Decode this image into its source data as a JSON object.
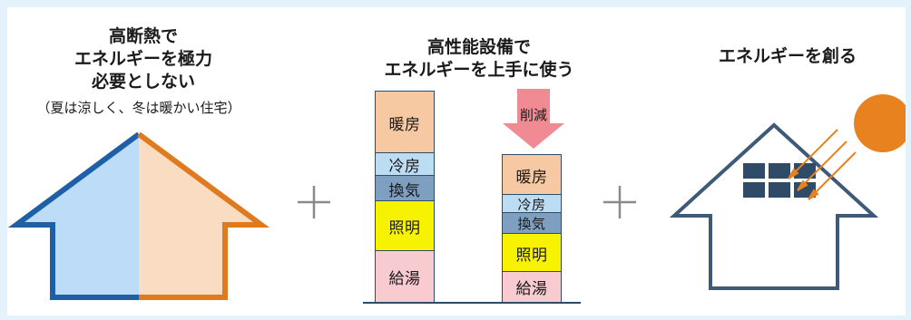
{
  "left_panel": {
    "title_line1": "高断熱で",
    "title_line2": "エネルギーを極力",
    "title_line3": "必要としない",
    "subtitle": "（夏は涼しく、冬は暖かい住宅）"
  },
  "middle_panel": {
    "title_line1": "高性能設備で",
    "title_line2": "エネルギーを上手に使う",
    "reduce_label": "削減",
    "before_stack": [
      {
        "label": "暖房",
        "color": "#f6c9a2"
      },
      {
        "label": "冷房",
        "color": "#bcdcf4"
      },
      {
        "label": "換気",
        "color": "#7f9fc0"
      },
      {
        "label": "照明",
        "color": "#f7f300"
      },
      {
        "label": "給湯",
        "color": "#f7cbcf"
      }
    ],
    "after_stack": [
      {
        "label": "暖房",
        "color": "#f6c9a2"
      },
      {
        "label": "冷房",
        "color": "#bcdcf4"
      },
      {
        "label": "換気",
        "color": "#7f9fc0"
      },
      {
        "label": "照明",
        "color": "#f7f300"
      },
      {
        "label": "給湯",
        "color": "#f7cbcf"
      }
    ]
  },
  "right_panel": {
    "title": "エネルギーを創る"
  },
  "colors": {
    "background": "#e4f2fb",
    "house_outline_blue": "#1f5fa8",
    "house_outline_orange": "#e07a1f",
    "house_fill_blue": "#bcdcf8",
    "house_fill_orange": "#fadcc2",
    "house_outline_dark": "#3d5a78",
    "solar_panel": "#2f4b68",
    "sun": "#e8821e",
    "reduce_arrow": "#f08a93",
    "plus": "#8a8a8a"
  },
  "icons": {
    "plus_1": "plus-icon",
    "plus_2": "plus-icon",
    "sun": "sun-icon",
    "solar_panel": "solar-panel-icon"
  }
}
